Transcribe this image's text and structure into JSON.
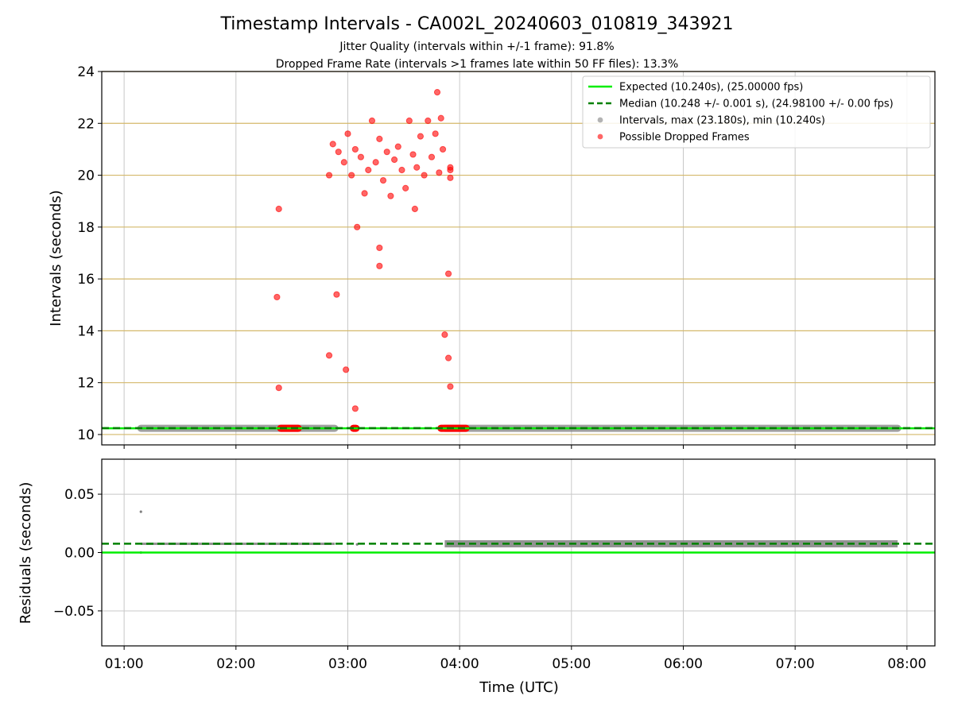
{
  "title": "Timestamp Intervals - CA002L_20240603_010819_343921",
  "subtitle1": "Jitter Quality (intervals within +/-1 frame): 91.8%",
  "subtitle2": "Dropped Frame Rate (intervals >1 frames late within 50 FF files): 13.3%",
  "colors": {
    "expected": "#00ee00",
    "median": "#008000",
    "intervals": "#808080",
    "dropped": "#ff0000",
    "top_grid": "#d4b86a",
    "grid": "#c8c8c8"
  },
  "chart_data": [
    {
      "type": "scatter",
      "ylabel": "Intervals (seconds)",
      "ylim": [
        9.6,
        24
      ],
      "xlim": [
        "00:48",
        "08:15"
      ],
      "yticks": [
        "10",
        "12",
        "14",
        "16",
        "18",
        "20",
        "22",
        "24"
      ],
      "grid": "horizontal lines at ticks",
      "legend_position": "top-right",
      "legend": [
        "Expected (10.240s), (25.00000 fps)",
        "Median (10.248 +/- 0.001 s), (24.98100 +/- 0.00 fps)",
        "Intervals, max (23.180s), min (10.240s)",
        "Possible Dropped Frames"
      ],
      "expected_line": 10.24,
      "median_line": 10.248,
      "interval_segments": [
        {
          "start": "01:09",
          "end": "02:53",
          "value": 10.24
        },
        {
          "start": "03:52",
          "end": "07:55",
          "value": 10.24
        }
      ],
      "dropped_baseline_segments": [
        {
          "start": "02:24",
          "end": "02:33",
          "value": 10.24
        },
        {
          "start": "03:03",
          "end": "03:04",
          "value": 10.24
        },
        {
          "start": "03:50",
          "end": "04:03",
          "value": 10.24
        }
      ],
      "dropped_points": [
        {
          "x": "02:23",
          "y": 18.7
        },
        {
          "x": "02:22",
          "y": 15.3
        },
        {
          "x": "02:23",
          "y": 11.8
        },
        {
          "x": "02:50",
          "y": 13.05
        },
        {
          "x": "02:54",
          "y": 15.4
        },
        {
          "x": "02:59",
          "y": 12.5
        },
        {
          "x": "03:04",
          "y": 11.0
        },
        {
          "x": "03:05",
          "y": 18.0
        },
        {
          "x": "03:17",
          "y": 17.2
        },
        {
          "x": "03:17",
          "y": 16.5
        },
        {
          "x": "03:36",
          "y": 18.7
        },
        {
          "x": "03:48",
          "y": 23.2
        },
        {
          "x": "03:52",
          "y": 13.85
        },
        {
          "x": "03:54",
          "y": 16.2
        },
        {
          "x": "03:54",
          "y": 12.95
        },
        {
          "x": "03:55",
          "y": 11.85
        },
        {
          "x": "03:55",
          "y": 20.3
        },
        {
          "x": "03:55",
          "y": 19.9
        },
        {
          "x": "03:55",
          "y": 20.2
        },
        {
          "x": "02:50",
          "y": 20.0
        },
        {
          "x": "02:52",
          "y": 21.2
        },
        {
          "x": "02:55",
          "y": 20.9
        },
        {
          "x": "02:58",
          "y": 20.5
        },
        {
          "x": "03:00",
          "y": 21.6
        },
        {
          "x": "03:02",
          "y": 20.0
        },
        {
          "x": "03:04",
          "y": 21.0
        },
        {
          "x": "03:07",
          "y": 20.7
        },
        {
          "x": "03:09",
          "y": 19.3
        },
        {
          "x": "03:11",
          "y": 20.2
        },
        {
          "x": "03:13",
          "y": 22.1
        },
        {
          "x": "03:15",
          "y": 20.5
        },
        {
          "x": "03:17",
          "y": 21.4
        },
        {
          "x": "03:19",
          "y": 19.8
        },
        {
          "x": "03:21",
          "y": 20.9
        },
        {
          "x": "03:23",
          "y": 19.2
        },
        {
          "x": "03:25",
          "y": 20.6
        },
        {
          "x": "03:27",
          "y": 21.1
        },
        {
          "x": "03:29",
          "y": 20.2
        },
        {
          "x": "03:31",
          "y": 19.5
        },
        {
          "x": "03:33",
          "y": 22.1
        },
        {
          "x": "03:35",
          "y": 20.8
        },
        {
          "x": "03:37",
          "y": 20.3
        },
        {
          "x": "03:39",
          "y": 21.5
        },
        {
          "x": "03:41",
          "y": 20.0
        },
        {
          "x": "03:43",
          "y": 22.1
        },
        {
          "x": "03:45",
          "y": 20.7
        },
        {
          "x": "03:47",
          "y": 21.6
        },
        {
          "x": "03:49",
          "y": 20.1
        },
        {
          "x": "03:50",
          "y": 22.2
        },
        {
          "x": "03:51",
          "y": 21.0
        }
      ]
    },
    {
      "type": "scatter",
      "ylabel": "Residuals (seconds)",
      "xlabel": "Time (UTC)",
      "ylim": [
        -0.08,
        0.08
      ],
      "yticks": [
        "−0.05",
        "0.00",
        "0.05"
      ],
      "xticks": [
        "01:00",
        "02:00",
        "03:00",
        "04:00",
        "05:00",
        "06:00",
        "07:00",
        "08:00"
      ],
      "grid": "on",
      "expected_line": 0.0,
      "median_line": 0.0076,
      "residual_segments": [
        {
          "start": "01:09",
          "end": "02:53",
          "value": 0.0075
        },
        {
          "start": "03:52",
          "end": "07:55",
          "value": 0.0075
        }
      ],
      "residual_points": [
        {
          "x": "01:09",
          "y": 0.035
        },
        {
          "x": "01:09",
          "y": 0.0
        },
        {
          "x": "03:05",
          "y": 0.007
        }
      ]
    }
  ]
}
